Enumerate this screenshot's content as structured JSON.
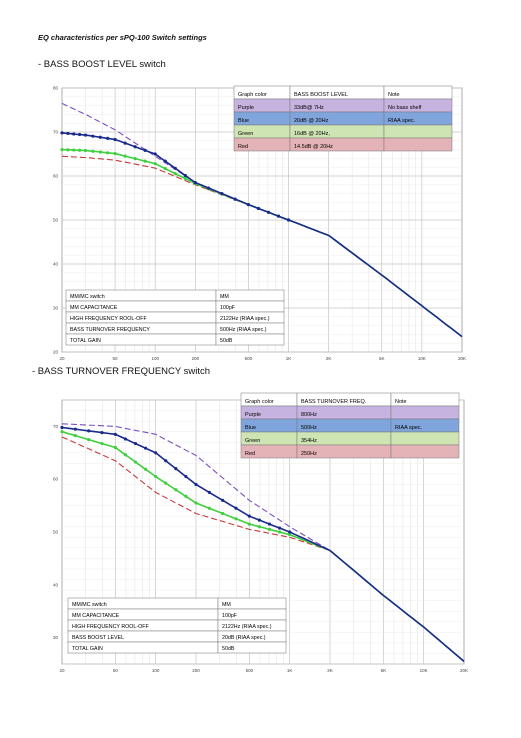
{
  "page": {
    "title": "EQ characteristics per sPQ-100 Switch settings",
    "section1": "- BASS BOOST LEVEL switch",
    "section2": "- BASS TURNOVER FREQUENCY switch"
  },
  "colors": {
    "purple": "#7a4fc2",
    "blue": "#1a2a8c",
    "green": "#3fcf3f",
    "red": "#c8383a",
    "row_purple": "#c7b3df",
    "row_blue": "#7fa5dc",
    "row_green": "#cfe4b3",
    "row_red": "#e4b3b8"
  },
  "chart_data": [
    {
      "type": "line",
      "scale_x": "log",
      "x_ticks": [
        "20",
        "50",
        "100",
        "200",
        "500",
        "1K",
        "2K",
        "5K",
        "10K",
        "20K"
      ],
      "y_ticks": [
        "20",
        "30",
        "40",
        "50",
        "60",
        "70",
        "80"
      ],
      "ylim": [
        20,
        80
      ],
      "grid": true,
      "legend_table": {
        "headers": [
          "Graph color",
          "BASS BOOST LEVEL",
          "Note"
        ],
        "rows": [
          {
            "key": "purple",
            "cells": [
              "Purple",
              "33dB@ 7Hz",
              "No bass shelf"
            ]
          },
          {
            "key": "blue",
            "cells": [
              "Blue",
              "20dB @ 20Hz",
              "RIAA spec."
            ]
          },
          {
            "key": "green",
            "cells": [
              "Green",
              "16dB @ 20Hz,",
              ""
            ]
          },
          {
            "key": "red",
            "cells": [
              "Red",
              "14.5dB @ 20Hz",
              ""
            ]
          }
        ]
      },
      "info_table": [
        [
          "MM/MC switch",
          "MM"
        ],
        [
          "MM CAPACITANCE",
          "100pF"
        ],
        [
          "HIGH FREQUENCY ROOL-OFF",
          "2122Hz (RIAA spec.)"
        ],
        [
          "BASS TURNOVER FREQUENCY",
          "500Hz (RIAA spec.)"
        ],
        [
          "TOTAL GAIN",
          "50dB"
        ]
      ],
      "series": [
        {
          "key": "purple",
          "style": "dash",
          "points": [
            [
              20,
              76.5
            ],
            [
              30,
              74
            ],
            [
              50,
              70.5
            ],
            [
              100,
              64.5
            ],
            [
              200,
              58.5
            ],
            [
              500,
              53.5
            ],
            [
              1000,
              50
            ],
            [
              2000,
              46.5
            ],
            [
              5000,
              37.5
            ],
            [
              10000,
              30.5
            ],
            [
              20000,
              23.5
            ]
          ]
        },
        {
          "key": "blue",
          "style": "dots",
          "points": [
            [
              20,
              69.8
            ],
            [
              30,
              69.3
            ],
            [
              50,
              68.3
            ],
            [
              100,
              65
            ],
            [
              200,
              58.5
            ],
            [
              500,
              53.5
            ],
            [
              1000,
              50
            ],
            [
              2000,
              46.5
            ],
            [
              5000,
              37.5
            ],
            [
              10000,
              30.5
            ],
            [
              20000,
              23.5
            ]
          ]
        },
        {
          "key": "green",
          "style": "dots",
          "points": [
            [
              20,
              66
            ],
            [
              30,
              65.8
            ],
            [
              50,
              65.1
            ],
            [
              100,
              62.8
            ],
            [
              200,
              58.3
            ],
            [
              500,
              53.5
            ],
            [
              1000,
              50
            ],
            [
              2000,
              46.5
            ],
            [
              5000,
              37.5
            ],
            [
              10000,
              30.5
            ],
            [
              20000,
              23.5
            ]
          ]
        },
        {
          "key": "red",
          "style": "dash",
          "points": [
            [
              20,
              64.5
            ],
            [
              30,
              64.2
            ],
            [
              50,
              63.6
            ],
            [
              100,
              61.8
            ],
            [
              200,
              58
            ],
            [
              500,
              53.5
            ],
            [
              1000,
              50
            ],
            [
              2000,
              46.5
            ],
            [
              5000,
              37.5
            ],
            [
              10000,
              30.5
            ],
            [
              20000,
              23.5
            ]
          ]
        }
      ]
    },
    {
      "type": "line",
      "scale_x": "log",
      "x_ticks": [
        "20",
        "50",
        "100",
        "200",
        "500",
        "1K",
        "2K",
        "5K",
        "10K",
        "20K"
      ],
      "y_ticks": [
        "30",
        "40",
        "50",
        "60",
        "70"
      ],
      "ylim": [
        25,
        75
      ],
      "grid": true,
      "legend_table": {
        "headers": [
          "Graph color",
          "BASS TURNOVER FREQ.",
          "Note"
        ],
        "rows": [
          {
            "key": "purple",
            "cells": [
              "Purple",
              "800Hz",
              ""
            ]
          },
          {
            "key": "blue",
            "cells": [
              "Blue",
              "500Hz",
              "RIAA spec."
            ]
          },
          {
            "key": "green",
            "cells": [
              "Green",
              "354Hz",
              ""
            ]
          },
          {
            "key": "red",
            "cells": [
              "Red",
              "250Hz",
              ""
            ]
          }
        ]
      },
      "info_table": [
        [
          "MM/MC switch",
          "MM"
        ],
        [
          "MM CAPACITANCE",
          "100pF"
        ],
        [
          "HIGH FREQUENCY ROOL-OFF",
          "2122Hz (RIAA spec.)"
        ],
        [
          "BASS BOOST LEVEL",
          "20dB (RIAA spec.)"
        ],
        [
          "TOTAL GAIN",
          "50dB"
        ]
      ],
      "series": [
        {
          "key": "purple",
          "style": "dash",
          "points": [
            [
              20,
              70.5
            ],
            [
              50,
              70
            ],
            [
              100,
              68.5
            ],
            [
              200,
              64.5
            ],
            [
              500,
              56
            ],
            [
              1000,
              51
            ],
            [
              2000,
              46.5
            ],
            [
              5000,
              38
            ],
            [
              10000,
              32
            ],
            [
              20000,
              25.5
            ]
          ]
        },
        {
          "key": "blue",
          "style": "dots",
          "points": [
            [
              20,
              69.8
            ],
            [
              50,
              68.5
            ],
            [
              100,
              65
            ],
            [
              200,
              59
            ],
            [
              500,
              53
            ],
            [
              1000,
              50
            ],
            [
              2000,
              46.5
            ],
            [
              5000,
              38
            ],
            [
              10000,
              32
            ],
            [
              20000,
              25.5
            ]
          ]
        },
        {
          "key": "green",
          "style": "dots",
          "points": [
            [
              20,
              69
            ],
            [
              50,
              66
            ],
            [
              100,
              60.5
            ],
            [
              200,
              55.5
            ],
            [
              500,
              51.5
            ],
            [
              1000,
              49.5
            ],
            [
              2000,
              46.5
            ],
            [
              5000,
              38
            ],
            [
              10000,
              32
            ],
            [
              20000,
              25.5
            ]
          ]
        },
        {
          "key": "red",
          "style": "dash",
          "points": [
            [
              20,
              68
            ],
            [
              50,
              63.5
            ],
            [
              100,
              57.5
            ],
            [
              200,
              53.5
            ],
            [
              500,
              50.5
            ],
            [
              1000,
              49
            ],
            [
              2000,
              46.5
            ],
            [
              5000,
              38
            ],
            [
              10000,
              32
            ],
            [
              20000,
              25.5
            ]
          ]
        }
      ]
    }
  ]
}
